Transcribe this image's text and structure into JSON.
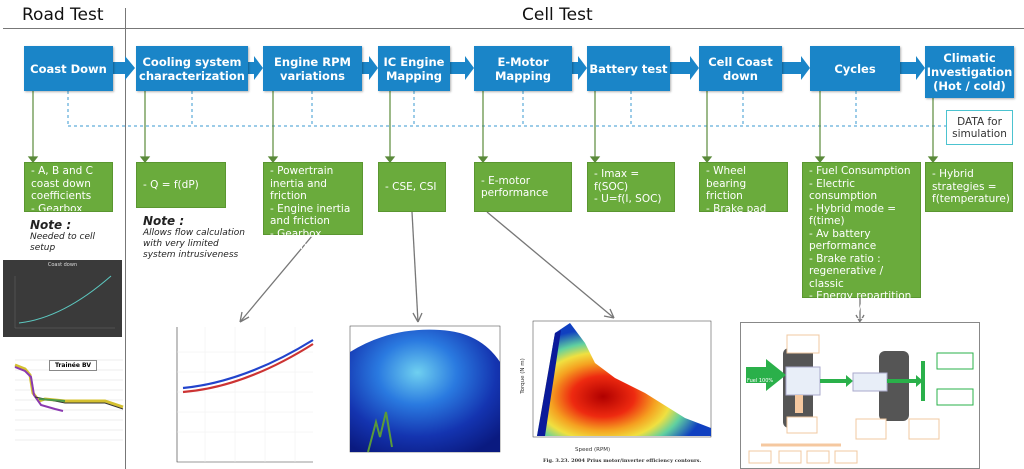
{
  "sections": {
    "road_test": "Road Test",
    "cell_test": "Cell Test"
  },
  "steps": [
    {
      "label": "Coast Down",
      "results": [
        "- A, B and C coast down coefficients",
        "- Gearbox friction"
      ]
    },
    {
      "label": "Cooling system characterization",
      "results": [
        "- Q = f(dP)"
      ]
    },
    {
      "label": "Engine RPM variations",
      "results": [
        "- Powertrain inertia and friction",
        "- Engine inertia and friction",
        "- Gearbox friction"
      ]
    },
    {
      "label": "IC Engine Mapping",
      "results": [
        "- CSE, CSI"
      ]
    },
    {
      "label": "E-Motor Mapping",
      "results": [
        "- E-motor performance"
      ]
    },
    {
      "label": "Battery test",
      "results": [
        "- Imax = f(SOC)",
        "- U=f(I, SOC)"
      ]
    },
    {
      "label": "Cell Coast down",
      "results": [
        "- Wheel bearing friction",
        "- Brake pad friction"
      ]
    },
    {
      "label": "Cycles",
      "results": [
        "- Fuel Consumption",
        "- Electric consumption",
        "- Hybrid mode = f(time)",
        "- Av battery performance",
        "- Brake ratio : regenerative / classic",
        "- Energy repartition : electric / mechanical"
      ]
    },
    {
      "label": "Climatic Investigation (Hot / cold)",
      "results": [
        "- Hybrid strategies  = f(temperature)"
      ]
    }
  ],
  "data_box": "DATA for simulation",
  "notes": [
    {
      "title": "Note :",
      "text": "Needed to cell setup"
    },
    {
      "title": "Note :",
      "text": "Allows flow calculation with very limited system intrusiveness"
    }
  ],
  "figures": {
    "coast_down_title": "Coast down",
    "trainee_title": "Trainée BV",
    "emotor_caption": "Fig. 3.23. 2004 Prius motor/inverter efficiency contours.",
    "emotor_xlabel": "Speed (RPM)",
    "emotor_ylabel": "Torque (N m)",
    "energy_fuel": "Fuel 100%"
  },
  "colors": {
    "step_blue": "#1a85c8",
    "result_green": "#6aab3c",
    "dashed_line": "#3a9ad0",
    "data_box_border": "#4cc3d0"
  }
}
